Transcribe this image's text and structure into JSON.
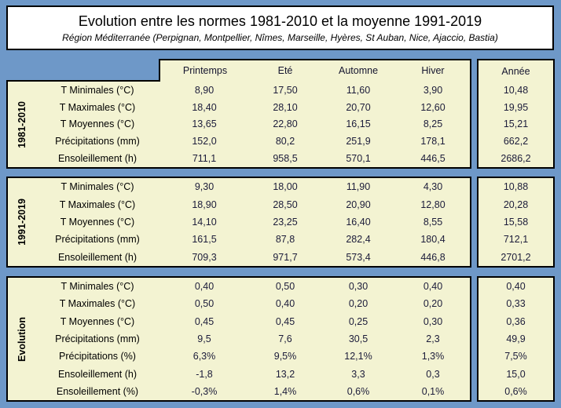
{
  "colors": {
    "background": "#6e98c8",
    "cell_fill": "#f3f3d2",
    "title_fill": "#ffffff",
    "border": "#000000",
    "value_text": "#1c1c3a"
  },
  "chart_data": {
    "type": "table",
    "title": "Evolution entre les normes 1981-2010 et la moyenne 1991-2019",
    "subtitle": "Région Méditerranée (Perpignan, Montpellier, Nîmes, Marseille, Hyères, St Auban, Nice, Ajaccio, Bastia)",
    "season_columns": [
      "Printemps",
      "Eté",
      "Automne",
      "Hiver"
    ],
    "year_label": "Année",
    "sections": [
      {
        "label": "1981-2010",
        "rows": [
          {
            "label": "T Minimales (°C)",
            "values": [
              "8,90",
              "17,50",
              "11,60",
              "3,90"
            ],
            "year": "10,48"
          },
          {
            "label": "T Maximales (°C)",
            "values": [
              "18,40",
              "28,10",
              "20,70",
              "12,60"
            ],
            "year": "19,95"
          },
          {
            "label": "T Moyennes (°C)",
            "values": [
              "13,65",
              "22,80",
              "16,15",
              "8,25"
            ],
            "year": "15,21"
          },
          {
            "label": "Précipitations (mm)",
            "values": [
              "152,0",
              "80,2",
              "251,9",
              "178,1"
            ],
            "year": "662,2"
          },
          {
            "label": "Ensoleillement (h)",
            "values": [
              "711,1",
              "958,5",
              "570,1",
              "446,5"
            ],
            "year": "2686,2"
          }
        ]
      },
      {
        "label": "1991-2019",
        "rows": [
          {
            "label": "T Minimales (°C)",
            "values": [
              "9,30",
              "18,00",
              "11,90",
              "4,30"
            ],
            "year": "10,88"
          },
          {
            "label": "T Maximales (°C)",
            "values": [
              "18,90",
              "28,50",
              "20,90",
              "12,80"
            ],
            "year": "20,28"
          },
          {
            "label": "T Moyennes (°C)",
            "values": [
              "14,10",
              "23,25",
              "16,40",
              "8,55"
            ],
            "year": "15,58"
          },
          {
            "label": "Précipitations (mm)",
            "values": [
              "161,5",
              "87,8",
              "282,4",
              "180,4"
            ],
            "year": "712,1"
          },
          {
            "label": "Ensoleillement (h)",
            "values": [
              "709,3",
              "971,7",
              "573,4",
              "446,8"
            ],
            "year": "2701,2"
          }
        ]
      },
      {
        "label": "Evolution",
        "rows": [
          {
            "label": "T Minimales (°C)",
            "values": [
              "0,40",
              "0,50",
              "0,30",
              "0,40"
            ],
            "year": "0,40"
          },
          {
            "label": "T Maximales (°C)",
            "values": [
              "0,50",
              "0,40",
              "0,20",
              "0,20"
            ],
            "year": "0,33"
          },
          {
            "label": "T Moyennes (°C)",
            "values": [
              "0,45",
              "0,45",
              "0,25",
              "0,30"
            ],
            "year": "0,36"
          },
          {
            "label": "Précipitations (mm)",
            "values": [
              "9,5",
              "7,6",
              "30,5",
              "2,3"
            ],
            "year": "49,9"
          },
          {
            "label": "Précipitations (%)",
            "values": [
              "6,3%",
              "9,5%",
              "12,1%",
              "1,3%"
            ],
            "year": "7,5%"
          },
          {
            "label": "Ensoleillement (h)",
            "values": [
              "-1,8",
              "13,2",
              "3,3",
              "0,3"
            ],
            "year": "15,0"
          },
          {
            "label": "Ensoleillement (%)",
            "values": [
              "-0,3%",
              "1,4%",
              "0,6%",
              "0,1%"
            ],
            "year": "0,6%"
          }
        ]
      }
    ]
  }
}
